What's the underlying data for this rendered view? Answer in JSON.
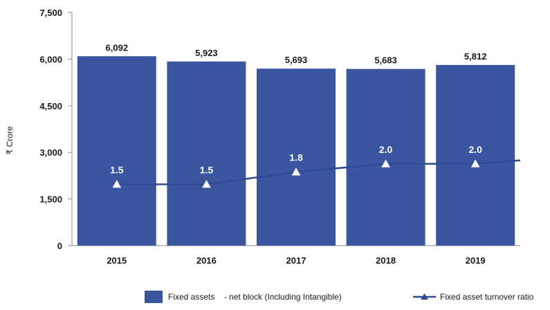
{
  "chart_data": {
    "type": "bar",
    "categories": [
      "2015",
      "2016",
      "2017",
      "2018",
      "2019"
    ],
    "series": [
      {
        "name": "Fixed assets    - net block (Including Intangible)",
        "type": "bar",
        "axis": "left",
        "values": [
          6092,
          5923,
          5693,
          5683,
          5812
        ],
        "labels": [
          "6,092",
          "5,923",
          "5,693",
          "5,683",
          "5,812"
        ]
      },
      {
        "name": "Fixed asset turnover ratio",
        "type": "line",
        "axis": "right",
        "values": [
          1.5,
          1.5,
          1.8,
          2.0,
          2.0
        ],
        "labels": [
          "1.5",
          "1.5",
          "1.8",
          "2.0",
          "2.0"
        ]
      }
    ],
    "ylabel": "₹ Crore",
    "yticks": [
      "0",
      "1,500",
      "3,000",
      "4,500",
      "6,000",
      "7,500"
    ],
    "ylim": [
      0,
      7500
    ],
    "ratio_axis_range": [
      0,
      5.7
    ],
    "legend_position": "bottom",
    "colors": {
      "bar": "#3a56a0",
      "line": "#2e4a94",
      "marker": "#ffffff"
    }
  }
}
